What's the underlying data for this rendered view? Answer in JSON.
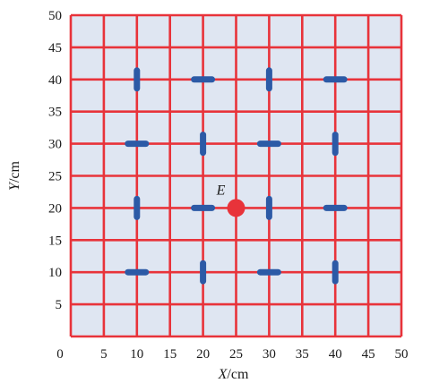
{
  "figure": {
    "x_axis": {
      "var": "X",
      "unit": "/cm",
      "min": 0,
      "max": 50,
      "step": 5
    },
    "y_axis": {
      "var": "Y",
      "unit": "/cm",
      "min": 0,
      "max": 50,
      "step": 5
    },
    "grid_color": "#e8333a",
    "background_color": "#dfe6f2",
    "marker_color": "#2c5aa6",
    "point_color": "#e8333a",
    "point": {
      "label": "E",
      "x": 25,
      "y": 20
    },
    "markers": [
      {
        "x": 10,
        "y": 40,
        "orientation": "vertical"
      },
      {
        "x": 20,
        "y": 40,
        "orientation": "horizontal"
      },
      {
        "x": 30,
        "y": 40,
        "orientation": "vertical"
      },
      {
        "x": 40,
        "y": 40,
        "orientation": "horizontal"
      },
      {
        "x": 10,
        "y": 30,
        "orientation": "horizontal"
      },
      {
        "x": 20,
        "y": 30,
        "orientation": "vertical"
      },
      {
        "x": 30,
        "y": 30,
        "orientation": "horizontal"
      },
      {
        "x": 40,
        "y": 30,
        "orientation": "vertical"
      },
      {
        "x": 10,
        "y": 20,
        "orientation": "vertical"
      },
      {
        "x": 20,
        "y": 20,
        "orientation": "horizontal"
      },
      {
        "x": 30,
        "y": 20,
        "orientation": "vertical"
      },
      {
        "x": 40,
        "y": 20,
        "orientation": "horizontal"
      },
      {
        "x": 10,
        "y": 10,
        "orientation": "horizontal"
      },
      {
        "x": 20,
        "y": 10,
        "orientation": "vertical"
      },
      {
        "x": 30,
        "y": 10,
        "orientation": "horizontal"
      },
      {
        "x": 40,
        "y": 10,
        "orientation": "vertical"
      }
    ]
  }
}
